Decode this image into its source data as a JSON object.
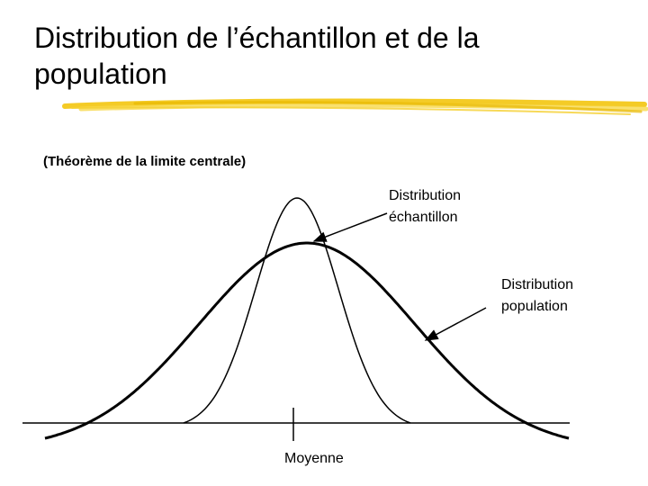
{
  "title": "Distribution de l’échantillon et de la population",
  "subtitle": "(Théorème de la limite centrale)",
  "labels": {
    "sample": [
      "Distribution",
      "échantillon"
    ],
    "population": [
      "Distribution",
      "population"
    ],
    "mean": "Moyenne"
  }
}
